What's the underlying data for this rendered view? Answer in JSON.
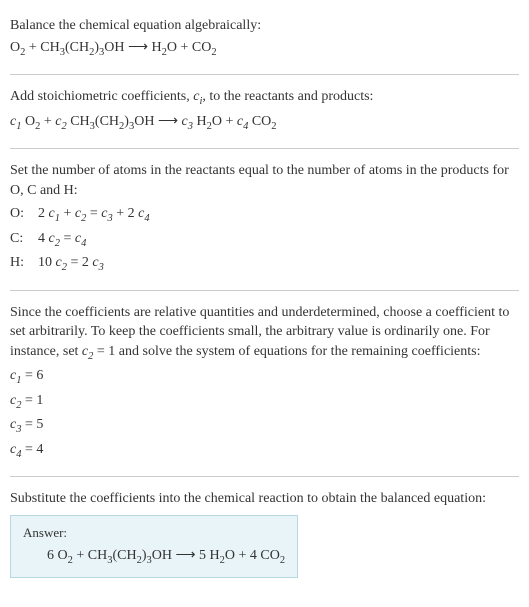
{
  "section1": {
    "intro": "Balance the chemical equation algebraically:",
    "equation": "O₂ + CH₃(CH₂)₃OH ⟶ H₂O + CO₂"
  },
  "section2": {
    "intro_part1": "Add stoichiometric coefficients, ",
    "intro_ci": "cᵢ",
    "intro_part2": ", to the reactants and products:",
    "equation_c1": "c₁",
    "equation_o2": " O₂",
    "equation_plus1": " + ",
    "equation_c2": "c₂",
    "equation_ch": " CH₃(CH₂)₃OH ⟶ ",
    "equation_c3": "c₃",
    "equation_h2o": " H₂O",
    "equation_plus2": " + ",
    "equation_c4": "c₄",
    "equation_co2": " CO₂"
  },
  "section3": {
    "intro": "Set the number of atoms in the reactants equal to the number of atoms in the products for O, C and H:",
    "rows": [
      {
        "label": "O:",
        "eq_p1": "2 ",
        "eq_c1": "c₁",
        "eq_p2": " + ",
        "eq_c2": "c₂",
        "eq_p3": " = ",
        "eq_c3": "c₃",
        "eq_p4": " + 2 ",
        "eq_c4": "c₄"
      },
      {
        "label": "C:",
        "eq_p1": "4 ",
        "eq_c1": "c₂",
        "eq_p2": " = ",
        "eq_c2": "c₄",
        "eq_p3": "",
        "eq_c3": "",
        "eq_p4": "",
        "eq_c4": ""
      },
      {
        "label": "H:",
        "eq_p1": "10 ",
        "eq_c1": "c₂",
        "eq_p2": " = 2 ",
        "eq_c2": "c₃",
        "eq_p3": "",
        "eq_c3": "",
        "eq_p4": "",
        "eq_c4": ""
      }
    ]
  },
  "section4": {
    "intro_p1": "Since the coefficients are relative quantities and underdetermined, choose a coefficient to set arbitrarily. To keep the coefficients small, the arbitrary value is ordinarily one. For instance, set ",
    "intro_c2": "c₂",
    "intro_p2": " = 1 and solve the system of equations for the remaining coefficients:",
    "coeffs": [
      {
        "c": "c₁",
        "eq": " = 6"
      },
      {
        "c": "c₂",
        "eq": " = 1"
      },
      {
        "c": "c₃",
        "eq": " = 5"
      },
      {
        "c": "c₄",
        "eq": " = 4"
      }
    ]
  },
  "section5": {
    "intro": "Substitute the coefficients into the chemical reaction to obtain the balanced equation:",
    "answer_label": "Answer:",
    "answer_equation": "6 O₂ + CH₃(CH₂)₃OH ⟶ 5 H₂O + 4 CO₂"
  },
  "colors": {
    "text": "#333333",
    "background": "#ffffff",
    "hr": "#cccccc",
    "answer_bg": "#e8f4f8",
    "answer_border": "#b8d8e0"
  },
  "typography": {
    "base_fontsize": 14,
    "font_family": "Georgia, serif"
  }
}
